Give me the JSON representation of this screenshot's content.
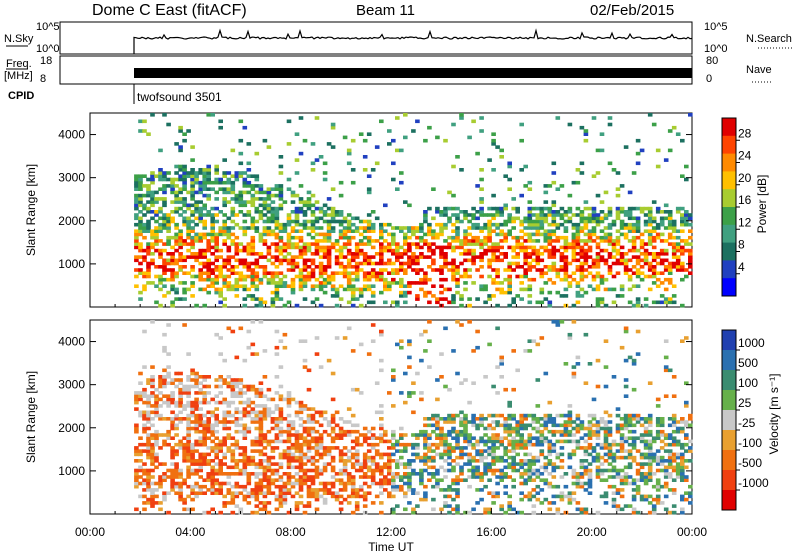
{
  "header": {
    "station": "Dome C East (fitACF)",
    "beam": "Beam 11",
    "date": "02/Feb/2015"
  },
  "chart_data": [
    {
      "type": "line",
      "name": "nsky-panel",
      "ylabel": "N.Sky",
      "right_label": "N.Search",
      "left_ticks": [
        "10^5",
        "10^0"
      ],
      "right_ticks": [
        "10^5",
        "10^0"
      ],
      "trace_start_time": "01:40",
      "series": [
        {
          "values": [
            110,
            110,
            110,
            110,
            110,
            110,
            110,
            110,
            110,
            110,
            110,
            110
          ]
        }
      ]
    },
    {
      "type": "area",
      "name": "freq-panel",
      "ylabel": "Freq. [MHz]",
      "right_label": "Nave",
      "left_ticks": [
        "18",
        "8"
      ],
      "right_ticks": [
        "80",
        "0"
      ],
      "trace_start_time": "01:40"
    },
    {
      "type": "heatmap",
      "name": "cpid",
      "label": "CPID",
      "mode": "twofsound 3501"
    },
    {
      "type": "heatmap",
      "name": "power",
      "xlabel": "",
      "ylabel": "Slant Range [km]",
      "x_range": [
        "00:00",
        "24:00"
      ],
      "y_range": [
        0,
        4500
      ],
      "y_ticks": [
        1000,
        2000,
        3000,
        4000
      ],
      "colorbar": {
        "label": "Power [dB]",
        "ticks": [
          "28",
          "24",
          "20",
          "16",
          "12",
          "8",
          "4"
        ],
        "colors": [
          "#e00000",
          "#ff4400",
          "#ff8a00",
          "#ffc000",
          "#a8cc30",
          "#3ca048",
          "#40a080",
          "#1c7060",
          "#2040c0",
          "#0000ff"
        ]
      }
    },
    {
      "type": "heatmap",
      "name": "velocity",
      "xlabel": "Time UT",
      "ylabel": "Slant Range [km]",
      "x_range": [
        "00:00",
        "24:00"
      ],
      "y_range": [
        0,
        4500
      ],
      "y_ticks": [
        1000,
        2000,
        3000,
        4000
      ],
      "x_ticks": [
        "00:00",
        "04:00",
        "08:00",
        "12:00",
        "16:00",
        "20:00",
        "00:00"
      ],
      "colorbar": {
        "label": "Velocity [m s⁻¹]",
        "ticks": [
          "1000",
          "500",
          "100",
          "25",
          "-25",
          "-100",
          "-500",
          "-1000"
        ],
        "colors": [
          "#2040b0",
          "#2a70b0",
          "#3a8c70",
          "#66b04a",
          "#c8c8c8",
          "#e8a030",
          "#f07010",
          "#f04010",
          "#e00000"
        ]
      }
    }
  ]
}
